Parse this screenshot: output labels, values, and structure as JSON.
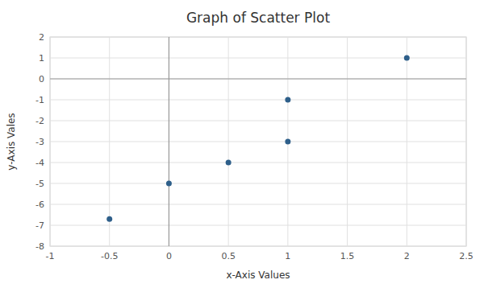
{
  "chart_data": {
    "type": "scatter",
    "title": "Graph of Scatter Plot",
    "xlabel": "x-Axis Values",
    "ylabel": "y-Axis Vales",
    "x": [
      -0.5,
      0,
      0.5,
      1,
      1,
      2
    ],
    "values": [
      -6.7,
      -5,
      -4,
      -3,
      -1,
      1
    ],
    "color": "#2E5F8A",
    "xlim": [
      -1,
      2.5
    ],
    "ylim": [
      -8,
      2
    ],
    "xticks": [
      -1,
      -0.5,
      0,
      0.5,
      1,
      1.5,
      2,
      2.5
    ],
    "yticks": [
      -8,
      -7,
      -6,
      -5,
      -4,
      -3,
      -2,
      -1,
      0,
      1,
      2
    ],
    "grid": true
  }
}
